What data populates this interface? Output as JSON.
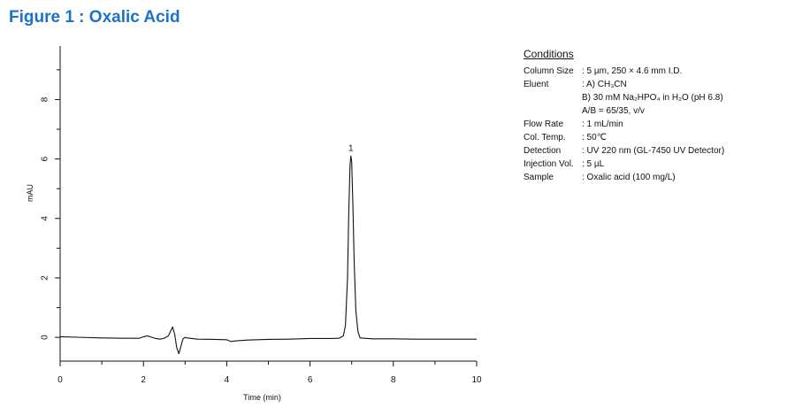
{
  "figure_title": "Figure 1 : Oxalic Acid",
  "conditions": {
    "heading": "Conditions",
    "rows": [
      {
        "label": "Column Size",
        "value": ": 5 µm, 250 × 4.6 mm I.D."
      },
      {
        "label": "Eluent",
        "value": ": A) CH₃CN"
      },
      {
        "label": "",
        "value": "  B) 30 mM Na₂HPO₄ in H₂O (pH 6.8)"
      },
      {
        "label": "",
        "value": "  A/B = 65/35, v/v"
      },
      {
        "label": "Flow Rate",
        "value": ": 1 mL/min"
      },
      {
        "label": "Col. Temp.",
        "value": ": 50℃"
      },
      {
        "label": "Detection",
        "value": ": UV 220 nm (GL-7450 UV Detector)"
      },
      {
        "label": "Injection Vol.",
        "value": ": 5 µL"
      },
      {
        "label": "Sample",
        "value": ": Oxalic acid (100 mg/L)"
      }
    ]
  },
  "chart_data": {
    "type": "line",
    "title": "",
    "xlabel": "Time (min)",
    "ylabel": "mAU",
    "xlim": [
      0,
      10
    ],
    "ylim": [
      -0.8,
      9.8
    ],
    "x_ticks": [
      0,
      2,
      4,
      6,
      8,
      10
    ],
    "y_ticks": [
      0,
      2,
      4,
      6,
      8
    ],
    "grid": false,
    "line_color": "#111111",
    "series": [
      {
        "points": [
          [
            0.0,
            0.02
          ],
          [
            0.5,
            0.0
          ],
          [
            1.0,
            -0.02
          ],
          [
            1.5,
            -0.03
          ],
          [
            1.9,
            -0.03
          ],
          [
            2.0,
            0.02
          ],
          [
            2.1,
            0.05
          ],
          [
            2.2,
            0.0
          ],
          [
            2.3,
            -0.04
          ],
          [
            2.4,
            -0.06
          ],
          [
            2.5,
            -0.03
          ],
          [
            2.6,
            0.05
          ],
          [
            2.65,
            0.2
          ],
          [
            2.7,
            0.35
          ],
          [
            2.75,
            0.1
          ],
          [
            2.8,
            -0.35
          ],
          [
            2.85,
            -0.55
          ],
          [
            2.9,
            -0.3
          ],
          [
            2.95,
            -0.05
          ],
          [
            3.0,
            0.0
          ],
          [
            3.05,
            -0.02
          ],
          [
            3.3,
            -0.06
          ],
          [
            3.7,
            -0.07
          ],
          [
            4.0,
            -0.08
          ],
          [
            4.1,
            -0.14
          ],
          [
            4.2,
            -0.12
          ],
          [
            4.5,
            -0.09
          ],
          [
            5.0,
            -0.07
          ],
          [
            5.5,
            -0.06
          ],
          [
            6.0,
            -0.04
          ],
          [
            6.5,
            -0.04
          ],
          [
            6.7,
            -0.03
          ],
          [
            6.8,
            0.05
          ],
          [
            6.85,
            0.4
          ],
          [
            6.9,
            2.0
          ],
          [
            6.93,
            4.2
          ],
          [
            6.96,
            5.8
          ],
          [
            6.98,
            6.1
          ],
          [
            7.0,
            5.9
          ],
          [
            7.03,
            4.4
          ],
          [
            7.06,
            2.5
          ],
          [
            7.1,
            0.9
          ],
          [
            7.15,
            0.2
          ],
          [
            7.2,
            -0.02
          ],
          [
            7.5,
            -0.05
          ],
          [
            8.0,
            -0.05
          ],
          [
            8.5,
            -0.06
          ],
          [
            9.0,
            -0.06
          ],
          [
            9.5,
            -0.06
          ],
          [
            10.0,
            -0.06
          ]
        ]
      }
    ],
    "annotations": [
      {
        "text": "1",
        "x": 6.98,
        "y": 6.1
      }
    ]
  }
}
